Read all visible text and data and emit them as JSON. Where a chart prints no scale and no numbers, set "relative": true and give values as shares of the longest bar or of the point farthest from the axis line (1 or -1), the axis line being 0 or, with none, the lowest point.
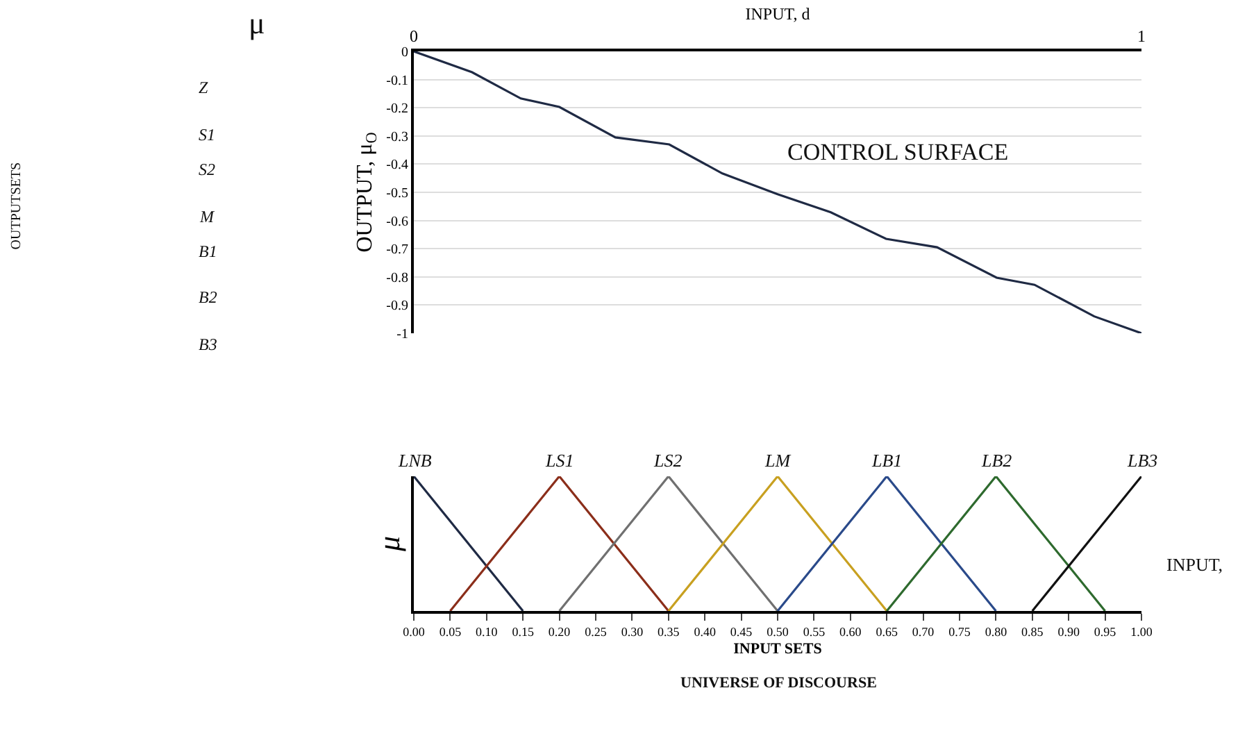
{
  "chart_data": [
    {
      "type": "line",
      "xlabel": "INPUT, d",
      "ylabel": "OUTPUT, μ$_{O}$",
      "xlim": [
        0,
        1
      ],
      "xticks": [
        0,
        1
      ],
      "ylim": [
        -1,
        0
      ],
      "yticks": [
        0,
        -0.1,
        -0.2,
        -0.3,
        -0.4,
        -0.5,
        -0.6,
        -0.7,
        -0.8,
        -0.9,
        -1
      ],
      "grid": true,
      "legend": false,
      "marker": "none",
      "x": [
        0,
        0.08,
        0.147,
        0.2,
        0.277,
        0.351,
        0.424,
        0.5,
        0.573,
        0.649,
        0.719,
        0.801,
        0.853,
        0.935,
        1
      ],
      "series": [
        {
          "color": "#1f2a44",
          "values": [
            0,
            -0.074,
            -0.167,
            -0.197,
            -0.305,
            -0.33,
            -0.433,
            -0.507,
            -0.571,
            -0.665,
            -0.695,
            -0.803,
            -0.828,
            -0.94,
            -1
          ]
        }
      ],
      "annotations": [
        "CONTROL SURFACE",
        "μ",
        "OUTPUTSETS",
        "Z",
        "S1",
        "S2",
        "M",
        "B1",
        "B2",
        "B3"
      ]
    },
    {
      "type": "line",
      "relative": true,
      "xlabel": "INPUT SETS",
      "ylabel": "μ",
      "xlim": [
        0,
        1
      ],
      "legend": false,
      "marker": "none",
      "xticks": [
        {
          "value": 0,
          "label": "0.00"
        },
        0.05,
        {
          "value": 0.1,
          "label": "0.10"
        },
        0.15,
        {
          "value": 0.2,
          "label": "0.20"
        },
        0.25,
        {
          "value": 0.3,
          "label": "0.30"
        },
        0.35,
        {
          "value": 0.4,
          "label": "0.40"
        },
        0.45,
        {
          "value": 0.5,
          "label": "0.50"
        },
        0.55,
        {
          "value": 0.6,
          "label": "0.60"
        },
        0.65,
        {
          "value": 0.7,
          "label": "0.70"
        },
        0.75,
        {
          "value": 0.8,
          "label": "0.80"
        },
        0.85,
        {
          "value": 0.9,
          "label": "0.90"
        },
        0.95,
        {
          "value": 1,
          "label": "1.00"
        }
      ],
      "series": [
        {
          "name": "LNB",
          "color": "#1f2a44",
          "x": [
            0,
            0.15
          ],
          "values": [
            1,
            0
          ]
        },
        {
          "name": "LS1",
          "color": "#8b2e1a",
          "x": [
            0.05,
            0.2,
            0.35
          ],
          "values": [
            0,
            1,
            0
          ]
        },
        {
          "name": "LS2",
          "color": "#707070",
          "x": [
            0.2,
            0.35,
            0.5
          ],
          "values": [
            0,
            1,
            0
          ]
        },
        {
          "name": "LM",
          "color": "#c8a020",
          "x": [
            0.35,
            0.5,
            0.65
          ],
          "values": [
            0,
            1,
            0
          ]
        },
        {
          "name": "LB1",
          "color": "#2a4a8a",
          "x": [
            0.5,
            0.65,
            0.8
          ],
          "values": [
            0,
            1,
            0
          ]
        },
        {
          "name": "LB2",
          "color": "#2e6a2e",
          "x": [
            0.65,
            0.8,
            0.95
          ],
          "values": [
            0,
            1,
            0
          ]
        },
        {
          "name": "LB3",
          "color": "#111111",
          "x": [
            0.85,
            1
          ],
          "values": [
            0,
            1
          ]
        }
      ],
      "annotations": [
        "INPUT,",
        "UNIVERSE OF DISCOURSE"
      ]
    }
  ]
}
